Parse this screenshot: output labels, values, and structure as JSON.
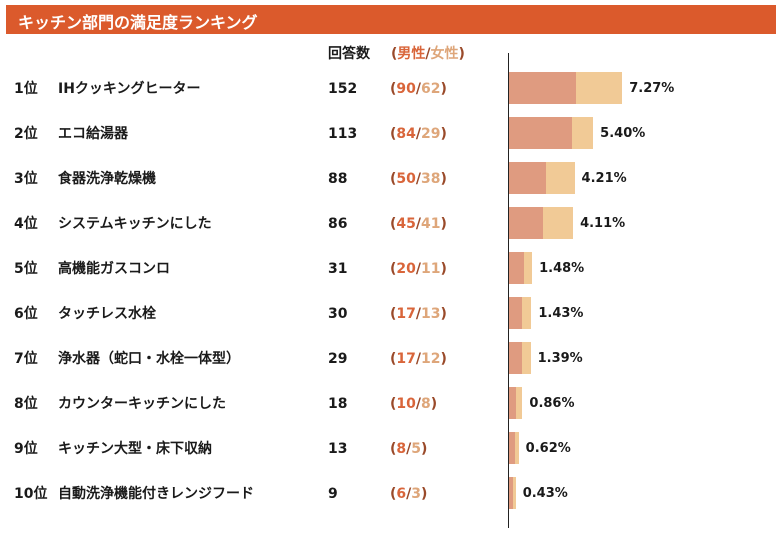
{
  "title": "キッチン部門の満足度ランキング",
  "header": {
    "count_label": "回答数",
    "paren_open": "(",
    "male_label": "男性",
    "slash": "/",
    "female_label": "女性",
    "paren_close": ")"
  },
  "colors": {
    "title_bg": "#db5a2c",
    "male": "#df9b80",
    "female": "#f1ca96",
    "male_text": "#d9653a",
    "female_text": "#dea67a"
  },
  "chart_data": {
    "type": "bar",
    "title": "キッチン部門の満足度ランキング",
    "orientation": "horizontal",
    "stacked": true,
    "series": [
      {
        "name": "男性",
        "values": [
          90,
          84,
          50,
          45,
          20,
          17,
          17,
          10,
          8,
          6
        ]
      },
      {
        "name": "女性",
        "values": [
          62,
          29,
          38,
          41,
          11,
          13,
          12,
          8,
          5,
          3
        ]
      }
    ],
    "rows": [
      {
        "rank": "1位",
        "name": "IHクッキングヒーター",
        "total": "152",
        "male": "90",
        "female": "62",
        "pct": "7.27%"
      },
      {
        "rank": "2位",
        "name": "エコ給湯器",
        "total": "113",
        "male": "84",
        "female": "29",
        "pct": "5.40%"
      },
      {
        "rank": "3位",
        "name": "食器洗浄乾燥機",
        "total": "88",
        "male": "50",
        "female": "38",
        "pct": "4.21%"
      },
      {
        "rank": "4位",
        "name": "システムキッチンにした",
        "total": "86",
        "male": "45",
        "female": "41",
        "pct": "4.11%"
      },
      {
        "rank": "5位",
        "name": "高機能ガスコンロ",
        "total": "31",
        "male": "20",
        "female": "11",
        "pct": "1.48%"
      },
      {
        "rank": "6位",
        "name": "タッチレス水栓",
        "total": "30",
        "male": "17",
        "female": "13",
        "pct": "1.43%"
      },
      {
        "rank": "7位",
        "name": "浄水器（蛇口・水栓一体型）",
        "total": "29",
        "male": "17",
        "female": "12",
        "pct": "1.39%"
      },
      {
        "rank": "8位",
        "name": "カウンターキッチンにした",
        "total": "18",
        "male": "10",
        "female": "8",
        "pct": "0.86%"
      },
      {
        "rank": "9位",
        "name": "キッチン大型・床下収納",
        "total": "13",
        "male": "8",
        "female": "5",
        "pct": "0.62%"
      },
      {
        "rank": "10位",
        "name": "自動洗浄機能付きレンジフード",
        "total": "9",
        "male": "6",
        "female": "3",
        "pct": "0.43%"
      }
    ]
  }
}
